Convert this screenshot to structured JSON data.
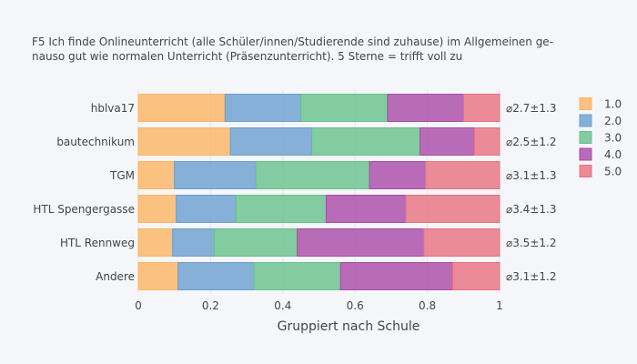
{
  "chart_data": {
    "type": "bar",
    "orientation": "horizontal",
    "stacked": true,
    "title_lines": [
      "F5 Ich finde Onlineunterricht (alle Schüler/innen/Studierende sind zuhause) im Allgemeinen ge-",
      "nauso gut wie normalen Unterricht (Präsenzunterricht). 5 Sterne = trifft voll zu"
    ],
    "xlabel": "Gruppiert nach Schule",
    "ylabel": "",
    "xlim": [
      0,
      1
    ],
    "x_ticks": [
      "0",
      "0.2",
      "0.4",
      "0.6",
      "0.8",
      "1"
    ],
    "x_tick_values": [
      0,
      0.2,
      0.4,
      0.6,
      0.8,
      1
    ],
    "categories": [
      "hblva17",
      "bautechnikum",
      "TGM",
      "HTL Spengergasse",
      "HTL Rennweg",
      "Andere"
    ],
    "annotations": [
      "⌀2.7±1.3",
      "⌀2.5±1.2",
      "⌀3.1±1.3",
      "⌀3.4±1.3",
      "⌀3.5±1.2",
      "⌀3.1±1.2"
    ],
    "series": [
      {
        "name": "1.0",
        "color": "#fdb462",
        "values": [
          0.24,
          0.255,
          0.1,
          0.105,
          0.095,
          0.11
        ]
      },
      {
        "name": "2.0",
        "color": "#6a9fd0",
        "values": [
          0.21,
          0.225,
          0.225,
          0.165,
          0.115,
          0.21
        ]
      },
      {
        "name": "3.0",
        "color": "#66c08a",
        "values": [
          0.24,
          0.3,
          0.315,
          0.25,
          0.23,
          0.24
        ]
      },
      {
        "name": "4.0",
        "color": "#a94aa8",
        "values": [
          0.21,
          0.15,
          0.155,
          0.22,
          0.35,
          0.31
        ]
      },
      {
        "name": "5.0",
        "color": "#e8707e",
        "values": [
          0.1,
          0.07,
          0.205,
          0.26,
          0.21,
          0.13
        ]
      }
    ],
    "grid": true,
    "legend_position": "right"
  }
}
